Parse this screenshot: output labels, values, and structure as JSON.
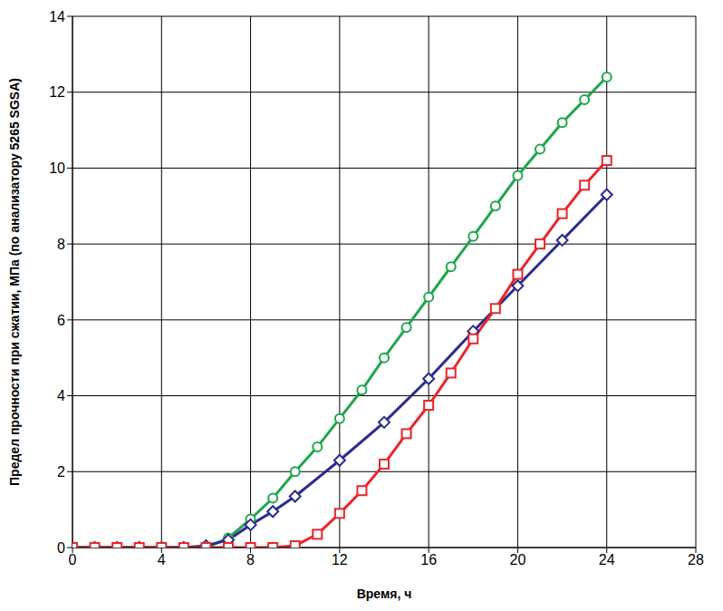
{
  "chart_data": {
    "type": "line",
    "x_label": "Время, ч",
    "y_label": "Предел прочности при сжатии, МПа (по анализатору 5265 SGSA)",
    "xlim": [
      0,
      28
    ],
    "xticks": [
      0,
      4,
      8,
      12,
      16,
      20,
      24,
      28
    ],
    "ylim": [
      0,
      14
    ],
    "yticks": [
      0,
      2,
      4,
      6,
      8,
      10,
      12,
      14
    ],
    "grid": true,
    "series": [
      {
        "color": "#1fa64a",
        "marker": "circle",
        "x": [
          0,
          1,
          2,
          3,
          4,
          5,
          6,
          7,
          8,
          9,
          10,
          11,
          12,
          13,
          14,
          15,
          16,
          17,
          18,
          19,
          20,
          21,
          22,
          23,
          24
        ],
        "values": [
          0,
          0,
          0,
          0,
          0,
          0,
          0,
          0.25,
          0.75,
          1.3,
          2.0,
          2.65,
          3.4,
          4.15,
          5.0,
          5.8,
          6.6,
          7.4,
          8.2,
          9.0,
          9.8,
          10.5,
          11.2,
          11.8,
          12.4
        ]
      },
      {
        "color": "#2b2b8f",
        "marker": "diamond",
        "x": [
          0,
          1,
          2,
          3,
          4,
          5,
          6,
          7,
          8,
          9,
          10,
          12,
          14,
          16,
          18,
          20,
          22,
          24
        ],
        "values": [
          0,
          0,
          0,
          0,
          0,
          0,
          0.05,
          0.2,
          0.6,
          0.95,
          1.35,
          2.3,
          3.3,
          4.45,
          5.7,
          6.9,
          8.1,
          9.3
        ]
      },
      {
        "color": "#e8262a",
        "marker": "square",
        "x": [
          0,
          1,
          2,
          3,
          4,
          5,
          6,
          7,
          8,
          9,
          10,
          11,
          12,
          13,
          14,
          15,
          16,
          17,
          18,
          19,
          20,
          21,
          22,
          23,
          24
        ],
        "values": [
          0,
          0,
          0,
          0,
          0,
          0,
          0,
          0,
          0,
          0,
          0.05,
          0.35,
          0.9,
          1.5,
          2.2,
          3.0,
          3.75,
          4.6,
          5.5,
          6.3,
          7.2,
          8.0,
          8.8,
          9.55,
          10.2
        ]
      }
    ]
  }
}
